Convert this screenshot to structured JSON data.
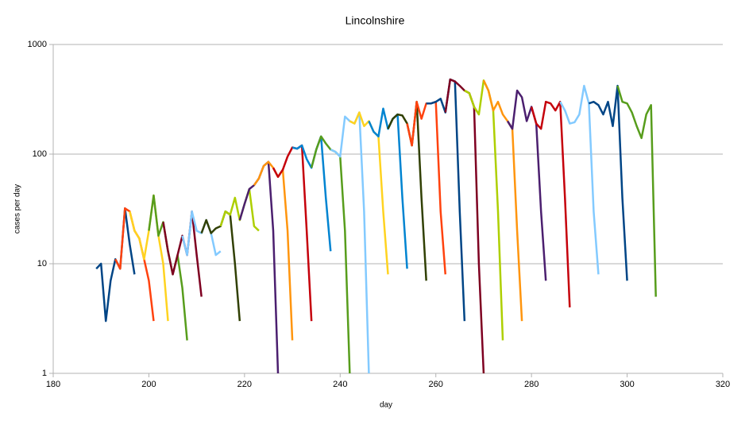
{
  "chart_data": {
    "type": "line",
    "title": "Lincolnshire",
    "x_label": "day",
    "y_label": "cases per day",
    "xlim": [
      180,
      320
    ],
    "xticks": [
      180,
      200,
      220,
      240,
      260,
      280,
      300,
      320
    ],
    "ylim": [
      1,
      1000
    ],
    "yticks": [
      1,
      10,
      100,
      1000
    ],
    "log_y": true,
    "grid": true,
    "series": [
      {
        "color": "#004586",
        "x": [
          189,
          190,
          191,
          192,
          193,
          194,
          195,
          196,
          197
        ],
        "values": [
          9,
          10,
          3,
          7,
          11,
          9,
          32,
          15,
          8
        ]
      },
      {
        "color": "#ff420e",
        "x": [
          193,
          194,
          195,
          196,
          197,
          198,
          199,
          200,
          201
        ],
        "values": [
          11,
          9,
          32,
          30,
          20,
          17,
          11,
          7,
          3
        ]
      },
      {
        "color": "#ffd320",
        "x": [
          196,
          197,
          198,
          199,
          200,
          201,
          202,
          203,
          204
        ],
        "values": [
          30,
          20,
          17,
          11,
          20,
          42,
          18,
          10,
          3
        ]
      },
      {
        "color": "#579d1c",
        "x": [
          200,
          201,
          202,
          203,
          204,
          205,
          206,
          207,
          208
        ],
        "values": [
          20,
          42,
          18,
          24,
          13,
          8,
          12,
          6,
          2
        ]
      },
      {
        "color": "#7e0021",
        "x": [
          203,
          204,
          205,
          206,
          207,
          208,
          209,
          210,
          211
        ],
        "values": [
          24,
          13,
          8,
          12,
          18,
          12,
          30,
          12,
          5
        ]
      },
      {
        "color": "#83caff",
        "x": [
          207,
          208,
          209,
          210,
          211,
          212,
          213,
          214,
          215
        ],
        "values": [
          18,
          12,
          30,
          20,
          19,
          25,
          19,
          12,
          13
        ]
      },
      {
        "color": "#314004",
        "x": [
          211,
          212,
          213,
          214,
          215,
          216,
          217,
          218,
          219
        ],
        "values": [
          19,
          25,
          19,
          21,
          22,
          30,
          28,
          10,
          3
        ]
      },
      {
        "color": "#aecf00",
        "x": [
          215,
          216,
          217,
          218,
          219,
          220,
          221,
          222,
          223
        ],
        "values": [
          22,
          30,
          28,
          40,
          25,
          35,
          48,
          22,
          20
        ]
      },
      {
        "color": "#4b1f6f",
        "x": [
          219,
          220,
          221,
          222,
          223,
          224,
          225,
          226,
          227
        ],
        "values": [
          25,
          35,
          48,
          52,
          60,
          78,
          85,
          20,
          1
        ]
      },
      {
        "color": "#ff950e",
        "x": [
          222,
          223,
          224,
          225,
          226,
          227,
          228,
          229,
          230
        ],
        "values": [
          52,
          60,
          78,
          85,
          75,
          62,
          72,
          20,
          2
        ]
      },
      {
        "color": "#c5000b",
        "x": [
          226,
          227,
          228,
          229,
          230,
          231,
          232,
          233,
          234
        ],
        "values": [
          75,
          62,
          72,
          95,
          115,
          112,
          120,
          20,
          3
        ]
      },
      {
        "color": "#0084d1",
        "x": [
          230,
          231,
          232,
          233,
          234,
          235,
          236,
          237,
          238
        ],
        "values": [
          115,
          112,
          120,
          90,
          75,
          110,
          145,
          40,
          13
        ]
      },
      {
        "color": "#579d1c",
        "x": [
          234,
          235,
          236,
          237,
          238,
          239,
          240,
          241,
          242
        ],
        "values": [
          75,
          110,
          145,
          125,
          110,
          105,
          95,
          20,
          1
        ]
      },
      {
        "color": "#83caff",
        "x": [
          238,
          239,
          240,
          241,
          242,
          243,
          244,
          245,
          246
        ],
        "values": [
          110,
          105,
          95,
          220,
          200,
          190,
          240,
          30,
          1
        ]
      },
      {
        "color": "#ffd320",
        "x": [
          242,
          243,
          244,
          245,
          246,
          247,
          248,
          249,
          250
        ],
        "values": [
          200,
          190,
          240,
          180,
          200,
          160,
          145,
          30,
          8
        ]
      },
      {
        "color": "#0084d1",
        "x": [
          246,
          247,
          248,
          249,
          250,
          251,
          252,
          253,
          254
        ],
        "values": [
          200,
          160,
          145,
          260,
          170,
          210,
          230,
          40,
          9
        ]
      },
      {
        "color": "#314004",
        "x": [
          250,
          251,
          252,
          253,
          254,
          255,
          256,
          257,
          258
        ],
        "values": [
          170,
          210,
          230,
          225,
          190,
          120,
          300,
          40,
          7
        ]
      },
      {
        "color": "#ff420e",
        "x": [
          254,
          255,
          256,
          257,
          258,
          259,
          260,
          261,
          262
        ],
        "values": [
          190,
          120,
          300,
          210,
          290,
          290,
          300,
          30,
          8
        ]
      },
      {
        "color": "#004586",
        "x": [
          258,
          259,
          260,
          261,
          262,
          263,
          264,
          265,
          266
        ],
        "values": [
          290,
          290,
          300,
          320,
          240,
          480,
          460,
          30,
          3
        ]
      },
      {
        "color": "#7e0021",
        "x": [
          262,
          263,
          264,
          265,
          266,
          267,
          268,
          269,
          270
        ],
        "values": [
          240,
          480,
          460,
          420,
          380,
          360,
          270,
          10,
          1
        ]
      },
      {
        "color": "#aecf00",
        "x": [
          266,
          267,
          268,
          269,
          270,
          271,
          272,
          273,
          274
        ],
        "values": [
          380,
          360,
          270,
          230,
          470,
          380,
          250,
          30,
          2
        ]
      },
      {
        "color": "#ff950e",
        "x": [
          270,
          271,
          272,
          273,
          274,
          275,
          276,
          277,
          278
        ],
        "values": [
          470,
          380,
          250,
          300,
          230,
          200,
          170,
          20,
          3
        ]
      },
      {
        "color": "#4b1f6f",
        "x": [
          275,
          276,
          277,
          278,
          279,
          280,
          281,
          282,
          283
        ],
        "values": [
          200,
          170,
          380,
          330,
          200,
          270,
          190,
          30,
          7
        ]
      },
      {
        "color": "#c5000b",
        "x": [
          280,
          281,
          282,
          283,
          284,
          285,
          286,
          287,
          288
        ],
        "values": [
          270,
          190,
          170,
          300,
          290,
          250,
          300,
          40,
          4
        ]
      },
      {
        "color": "#83caff",
        "x": [
          286,
          287,
          288,
          289,
          290,
          291,
          292,
          293,
          294
        ],
        "values": [
          300,
          250,
          190,
          195,
          230,
          420,
          290,
          30,
          8
        ]
      },
      {
        "color": "#004586",
        "x": [
          292,
          293,
          294,
          295,
          296,
          297,
          298,
          299,
          300
        ],
        "values": [
          290,
          300,
          280,
          230,
          300,
          180,
          420,
          40,
          7
        ]
      },
      {
        "color": "#579d1c",
        "x": [
          298,
          299,
          300,
          301,
          302,
          303,
          304,
          305,
          306
        ],
        "values": [
          420,
          300,
          290,
          240,
          180,
          140,
          230,
          280,
          5
        ]
      }
    ]
  }
}
